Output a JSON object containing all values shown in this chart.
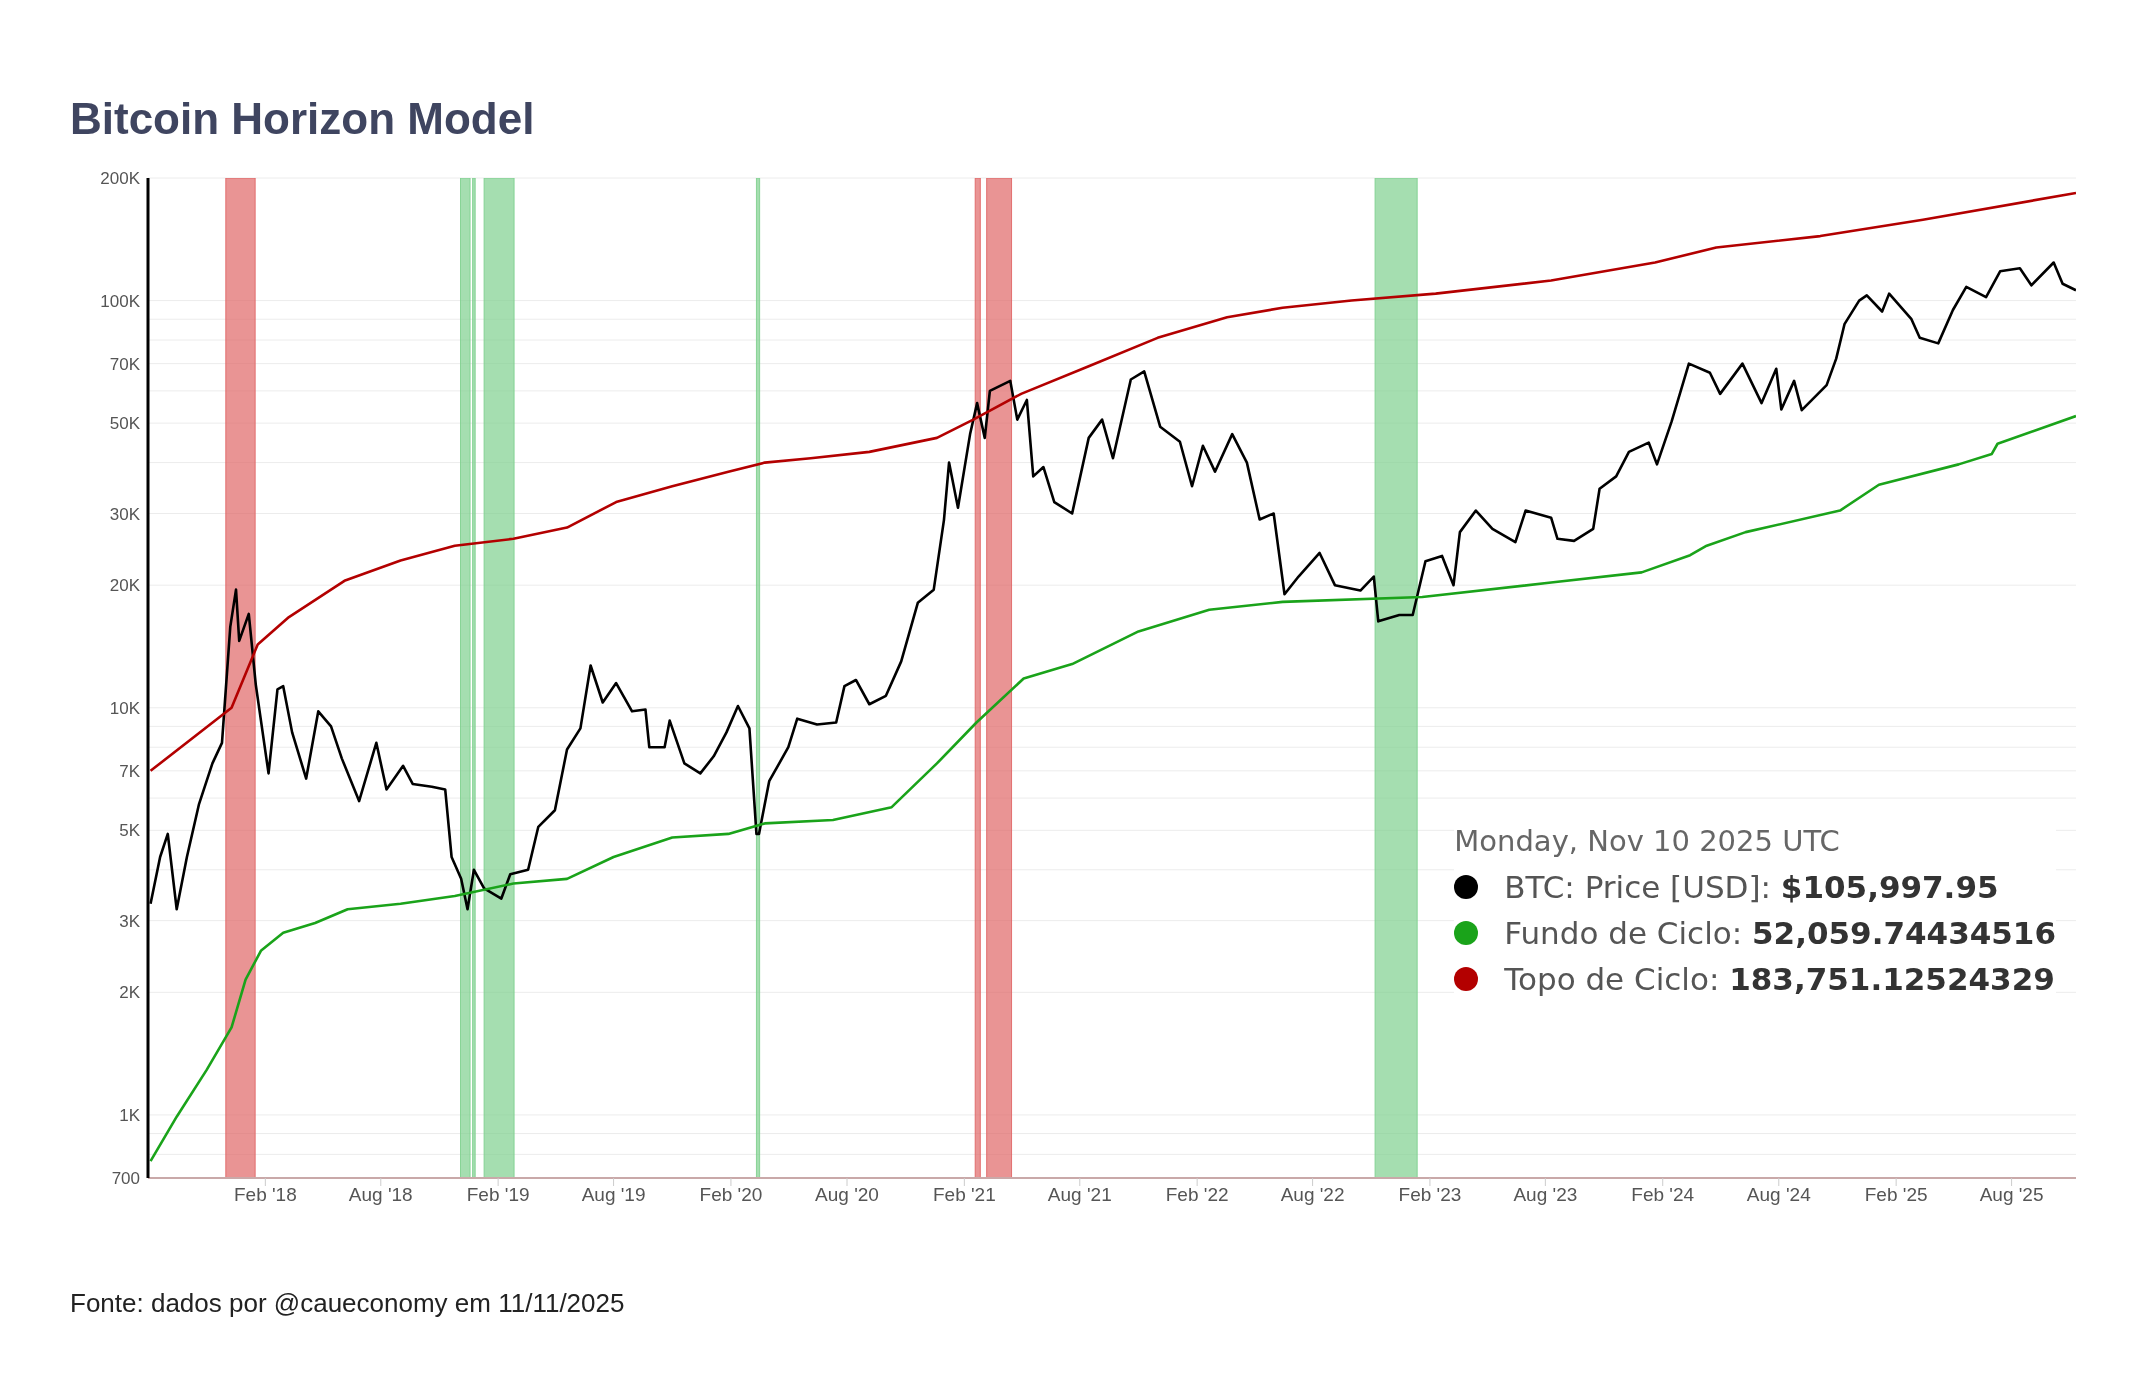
{
  "chart_data": {
    "type": "line",
    "title": "Bitcoin Horizon Model",
    "log": "y",
    "grid": "y",
    "legend": "bottom right",
    "legend_title": "Monday, Nov 10 2025 UTC",
    "xlim": [
      "2017-08-01",
      "2025-11-10"
    ],
    "xticks": [
      {
        "value": "2018-02-01",
        "label": "Feb '18"
      },
      {
        "value": "2018-08-01",
        "label": "Aug '18"
      },
      {
        "value": "2019-02-01",
        "label": "Feb '19"
      },
      {
        "value": "2019-08-01",
        "label": "Aug '19"
      },
      {
        "value": "2020-02-01",
        "label": "Feb '20"
      },
      {
        "value": "2020-08-01",
        "label": "Aug '20"
      },
      {
        "value": "2021-02-01",
        "label": "Feb '21"
      },
      {
        "value": "2021-08-01",
        "label": "Aug '21"
      },
      {
        "value": "2022-02-01",
        "label": "Feb '22"
      },
      {
        "value": "2022-08-01",
        "label": "Aug '22"
      },
      {
        "value": "2023-02-01",
        "label": "Feb '23"
      },
      {
        "value": "2023-08-01",
        "label": "Aug '23"
      },
      {
        "value": "2024-02-01",
        "label": "Feb '24"
      },
      {
        "value": "2024-08-01",
        "label": "Aug '24"
      },
      {
        "value": "2025-02-01",
        "label": "Feb '25"
      },
      {
        "value": "2025-08-01",
        "label": "Aug '25"
      }
    ],
    "ylim": [
      700,
      200000
    ],
    "yticks": [
      700,
      {
        "value": 800,
        "label": null
      },
      {
        "value": 900,
        "label": null
      },
      {
        "value": 1000,
        "label": "1K"
      },
      {
        "value": 2000,
        "label": "2K"
      },
      {
        "value": 3000,
        "label": "3K"
      },
      {
        "value": 4000,
        "label": null
      },
      {
        "value": 5000,
        "label": "5K"
      },
      {
        "value": 6000,
        "label": null
      },
      {
        "value": 7000,
        "label": "7K"
      },
      {
        "value": 8000,
        "label": null
      },
      {
        "value": 9000,
        "label": null
      },
      {
        "value": 10000,
        "label": "10K"
      },
      {
        "value": 20000,
        "label": "20K"
      },
      {
        "value": 30000,
        "label": "30K"
      },
      {
        "value": 40000,
        "label": null
      },
      {
        "value": 50000,
        "label": "50K"
      },
      {
        "value": 60000,
        "label": null
      },
      {
        "value": 70000,
        "label": "70K"
      },
      {
        "value": 80000,
        "label": null
      },
      {
        "value": 90000,
        "label": null
      },
      {
        "value": 100000,
        "label": "100K"
      },
      {
        "value": 200000,
        "label": "200K"
      }
    ],
    "bands": [
      {
        "axis": "x",
        "from": "2017-12-01",
        "to": "2018-01-16",
        "color": "#e06666"
      },
      {
        "axis": "x",
        "from": "2018-12-04",
        "to": "2018-12-19",
        "color": "#7fd08f"
      },
      {
        "axis": "x",
        "from": "2018-12-23",
        "to": "2018-12-27",
        "color": "#7fd08f"
      },
      {
        "axis": "x",
        "from": "2019-01-10",
        "to": "2019-02-26",
        "color": "#7fd08f"
      },
      {
        "axis": "x",
        "from": "2020-03-12",
        "to": "2020-03-17",
        "color": "#7fd08f"
      },
      {
        "axis": "x",
        "from": "2021-02-18",
        "to": "2021-02-26",
        "color": "#e06666"
      },
      {
        "axis": "x",
        "from": "2021-03-08",
        "to": "2021-04-16",
        "color": "#e06666"
      },
      {
        "axis": "x",
        "from": "2022-11-07",
        "to": "2023-01-12",
        "color": "#7fd08f"
      }
    ],
    "series": [
      {
        "name": "BTC: Price [USD]:",
        "color": "#000000",
        "x": [
          "2017-08-05",
          "2017-08-20",
          "2017-09-01",
          "2017-09-15",
          "2017-10-01",
          "2017-10-20",
          "2017-11-10",
          "2017-11-25",
          "2017-12-08",
          "2017-12-17",
          "2017-12-22",
          "2018-01-06",
          "2018-01-17",
          "2018-02-06",
          "2018-02-20",
          "2018-03-01",
          "2018-03-15",
          "2018-04-06",
          "2018-04-25",
          "2018-05-15",
          "2018-06-01",
          "2018-06-28",
          "2018-07-25",
          "2018-08-10",
          "2018-09-05",
          "2018-09-20",
          "2018-10-20",
          "2018-11-10",
          "2018-11-20",
          "2018-12-05",
          "2018-12-15",
          "2018-12-25",
          "2019-01-10",
          "2019-02-06",
          "2019-02-20",
          "2019-03-20",
          "2019-04-05",
          "2019-05-01",
          "2019-05-20",
          "2019-06-10",
          "2019-06-26",
          "2019-07-15",
          "2019-08-05",
          "2019-08-30",
          "2019-09-20",
          "2019-09-26",
          "2019-10-20",
          "2019-10-28",
          "2019-11-20",
          "2019-12-15",
          "2020-01-05",
          "2020-01-25",
          "2020-02-12",
          "2020-03-01",
          "2020-03-12",
          "2020-03-16",
          "2020-04-01",
          "2020-05-01",
          "2020-05-15",
          "2020-06-15",
          "2020-07-15",
          "2020-07-28",
          "2020-08-15",
          "2020-09-05",
          "2020-10-01",
          "2020-10-25",
          "2020-11-20",
          "2020-12-15",
          "2020-12-31",
          "2021-01-08",
          "2021-01-22",
          "2021-02-10",
          "2021-02-21",
          "2021-03-05",
          "2021-03-13",
          "2021-04-14",
          "2021-04-25",
          "2021-05-10",
          "2021-05-20",
          "2021-06-05",
          "2021-06-22",
          "2021-07-20",
          "2021-08-15",
          "2021-09-05",
          "2021-09-22",
          "2021-10-20",
          "2021-11-10",
          "2021-12-05",
          "2022-01-05",
          "2022-01-24",
          "2022-02-10",
          "2022-03-01",
          "2022-03-28",
          "2022-04-20",
          "2022-05-10",
          "2022-06-01",
          "2022-06-18",
          "2022-07-10",
          "2022-08-12",
          "2022-09-05",
          "2022-10-15",
          "2022-11-05",
          "2022-11-12",
          "2022-12-15",
          "2023-01-05",
          "2023-01-25",
          "2023-02-20",
          "2023-03-10",
          "2023-03-20",
          "2023-04-14",
          "2023-05-10",
          "2023-06-15",
          "2023-07-01",
          "2023-08-10",
          "2023-08-20",
          "2023-09-15",
          "2023-10-15",
          "2023-10-25",
          "2023-11-20",
          "2023-12-10",
          "2024-01-10",
          "2024-01-23",
          "2024-02-15",
          "2024-03-13",
          "2024-04-15",
          "2024-05-01",
          "2024-06-05",
          "2024-07-05",
          "2024-07-28",
          "2024-08-05",
          "2024-08-25",
          "2024-09-06",
          "2024-10-15",
          "2024-10-30",
          "2024-11-12",
          "2024-12-05",
          "2024-12-17",
          "2025-01-10",
          "2025-01-21",
          "2025-02-25",
          "2025-03-10",
          "2025-04-08",
          "2025-05-01",
          "2025-05-22",
          "2025-06-22",
          "2025-07-14",
          "2025-08-14",
          "2025-09-01",
          "2025-10-06",
          "2025-10-20",
          "2025-11-10"
        ],
        "values": [
          3300,
          4300,
          4900,
          3200,
          4300,
          5800,
          7300,
          8200,
          15800,
          19500,
          14600,
          17000,
          11400,
          6900,
          11100,
          11300,
          8700,
          6700,
          9800,
          9000,
          7500,
          5900,
          8200,
          6300,
          7200,
          6500,
          6400,
          6300,
          4300,
          3800,
          3200,
          4000,
          3600,
          3400,
          3900,
          4000,
          5100,
          5600,
          7900,
          8900,
          12700,
          10300,
          11500,
          9800,
          9900,
          8000,
          8000,
          9300,
          7300,
          6900,
          7600,
          8700,
          10100,
          8900,
          4900,
          4900,
          6600,
          8000,
          9400,
          9100,
          9200,
          11300,
          11700,
          10200,
          10700,
          13000,
          18100,
          19500,
          28900,
          40000,
          31000,
          47000,
          56000,
          46000,
          60000,
          63500,
          51000,
          57000,
          37000,
          39000,
          32000,
          30000,
          46000,
          51000,
          41000,
          64000,
          67000,
          49000,
          45000,
          35000,
          44000,
          38000,
          47000,
          40000,
          29000,
          30000,
          19000,
          21000,
          24000,
          20000,
          19400,
          21000,
          16300,
          16900,
          16900,
          22900,
          23600,
          20000,
          27000,
          30500,
          27500,
          25500,
          30500,
          29300,
          26000,
          25700,
          27500,
          34500,
          37000,
          42500,
          44800,
          39600,
          50500,
          70000,
          66500,
          59000,
          70000,
          56000,
          68000,
          54000,
          63500,
          53800,
          62000,
          72000,
          87500,
          100000,
          103000,
          94000,
          104000,
          90000,
          81000,
          78500,
          94800,
          108000,
          102000,
          118000,
          120000,
          109000,
          124000,
          110000,
          105998
        ]
      },
      {
        "name": "Fundo de Ciclo:",
        "color": "#1aa31a",
        "x": [
          "2017-08-05",
          "2017-09-15",
          "2017-11-01",
          "2017-12-10",
          "2018-01-01",
          "2018-01-25",
          "2018-03-01",
          "2018-04-20",
          "2018-06-10",
          "2018-09-01",
          "2018-11-25",
          "2019-02-25",
          "2019-05-20",
          "2019-08-01",
          "2019-11-01",
          "2020-01-28",
          "2020-03-25",
          "2020-07-10",
          "2020-10-10",
          "2020-12-20",
          "2021-02-20",
          "2021-05-05",
          "2021-07-20",
          "2021-11-01",
          "2022-02-20",
          "2022-06-15",
          "2023-01-20",
          "2023-08-10",
          "2023-12-30",
          "2024-03-15",
          "2024-04-10",
          "2024-06-10",
          "2024-11-05",
          "2025-01-05",
          "2025-05-10",
          "2025-07-01",
          "2025-07-10",
          "2025-11-10"
        ],
        "values": [
          770,
          990,
          1290,
          1640,
          2150,
          2530,
          2800,
          2960,
          3200,
          3300,
          3450,
          3700,
          3800,
          4300,
          4800,
          4900,
          5200,
          5300,
          5700,
          7300,
          9200,
          11800,
          12800,
          15400,
          17400,
          18200,
          18700,
          20300,
          21500,
          23700,
          25000,
          27000,
          30500,
          35300,
          39600,
          42000,
          44500,
          52060
        ]
      },
      {
        "name": "Topo de Ciclo:",
        "color": "#b30000",
        "x": [
          "2017-08-05",
          "2017-12-10",
          "2018-01-20",
          "2018-03-10",
          "2018-06-05",
          "2018-09-01",
          "2018-11-25",
          "2019-02-25",
          "2019-05-20",
          "2019-08-05",
          "2019-11-01",
          "2020-01-28",
          "2020-03-25",
          "2020-06-05",
          "2020-09-05",
          "2020-12-20",
          "2021-02-15",
          "2021-05-01",
          "2021-08-15",
          "2021-12-01",
          "2022-03-20",
          "2022-06-15",
          "2022-10-01",
          "2023-02-10",
          "2023-08-10",
          "2024-01-20",
          "2024-04-25",
          "2024-10-05",
          "2025-03-15",
          "2025-11-10"
        ],
        "values": [
          7000,
          10000,
          14300,
          16700,
          20500,
          23000,
          25000,
          26000,
          27700,
          32000,
          35000,
          38000,
          40000,
          41000,
          42500,
          46000,
          51000,
          59000,
          69000,
          81000,
          91000,
          96000,
          100000,
          104000,
          112000,
          124000,
          135000,
          144000,
          158000,
          183750
        ]
      }
    ],
    "annotations": [
      "$105,997.95",
      "52,059.74434516",
      "183,751.12524329",
      "Fonte: dados por @caueconomy em 11/11/2025"
    ]
  }
}
